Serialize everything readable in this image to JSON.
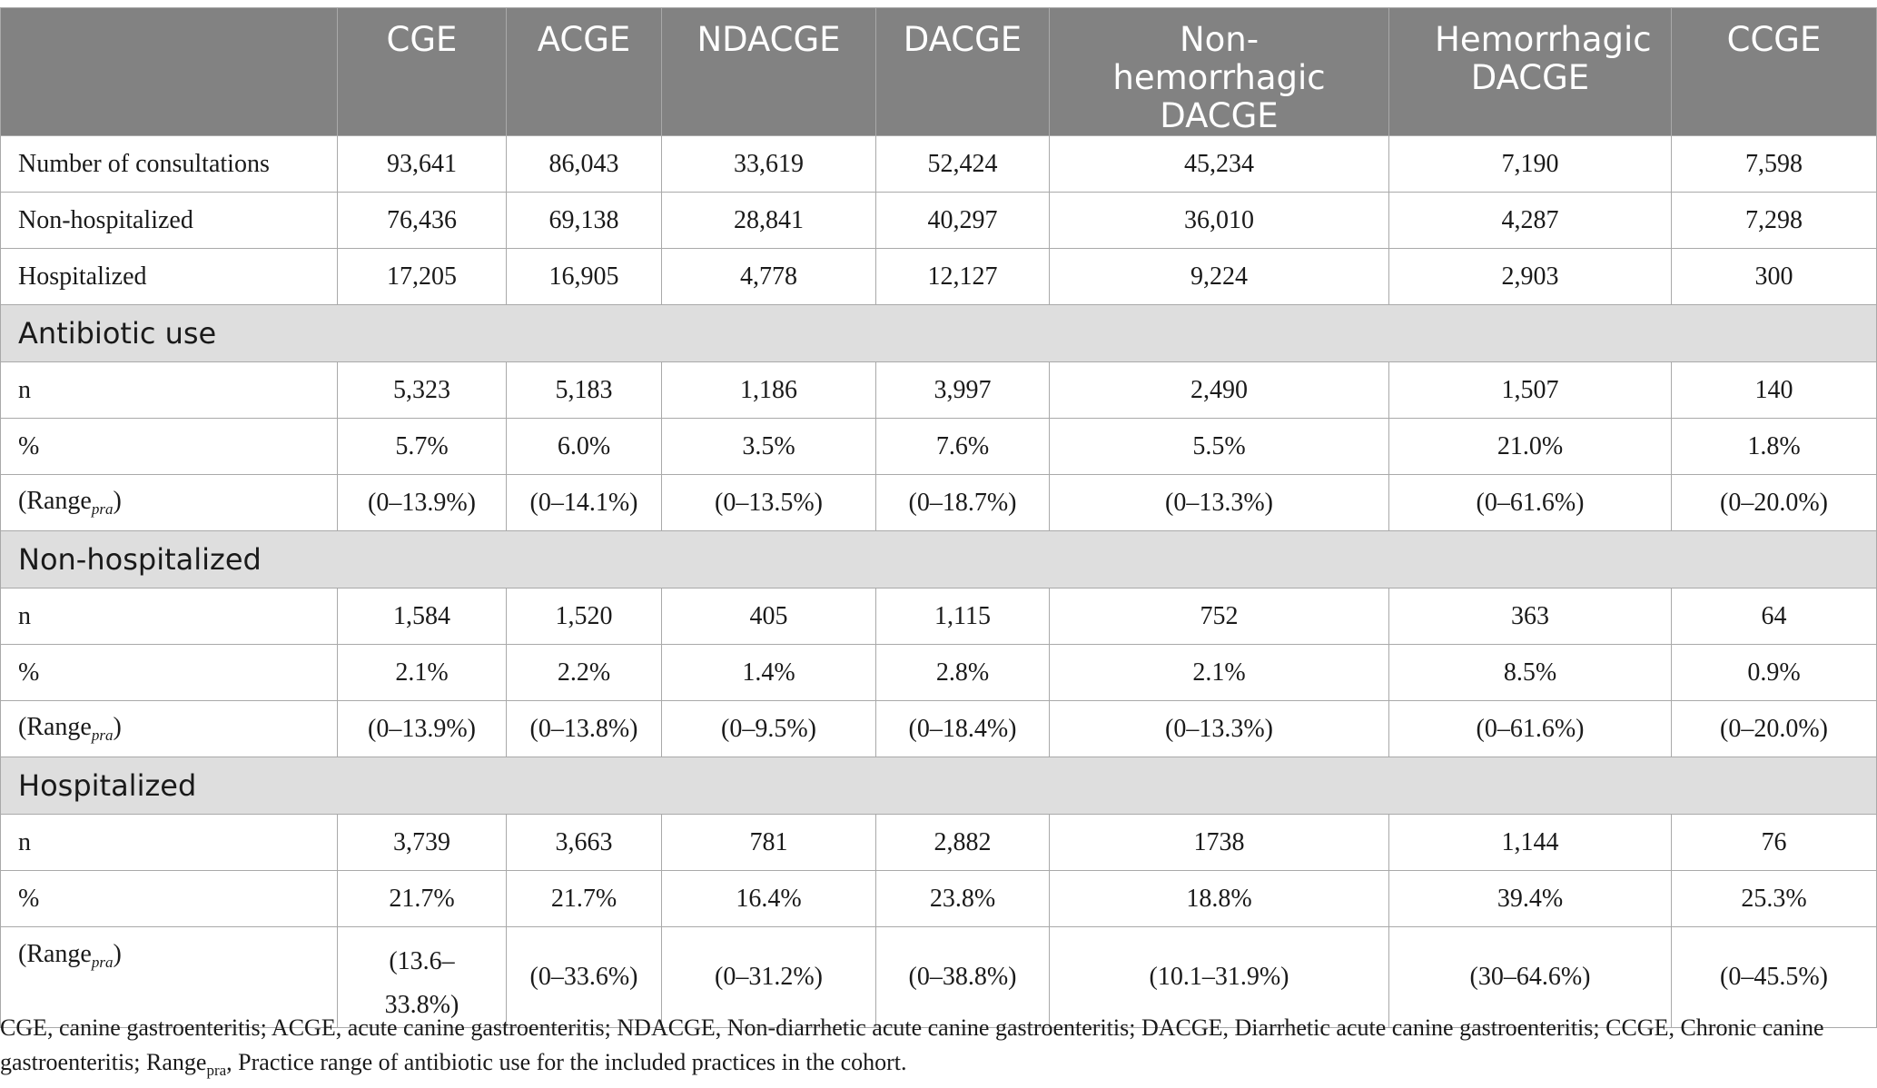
{
  "table": {
    "columns": [
      "CGE",
      "ACGE",
      "NDACGE",
      "DACGE",
      "Non-hemorrhagic DACGE",
      "Hemorrhagic DACGE",
      "CCGE"
    ],
    "top_rows": [
      {
        "label": "Number of consultations",
        "values": [
          "93,641",
          "86,043",
          "33,619",
          "52,424",
          "45,234",
          "7,190",
          "7,598"
        ]
      },
      {
        "label": "Non-hospitalized",
        "values": [
          "76,436",
          "69,138",
          "28,841",
          "40,297",
          "36,010",
          "4,287",
          "7,298"
        ]
      },
      {
        "label": "Hospitalized",
        "values": [
          "17,205",
          "16,905",
          "4,778",
          "12,127",
          "9,224",
          "2,903",
          "300"
        ]
      }
    ],
    "sections": [
      {
        "title": "Antibiotic use",
        "n": {
          "label": "n",
          "values": [
            "5,323",
            "5,183",
            "1,186",
            "3,997",
            "2,490",
            "1,507",
            "140"
          ]
        },
        "pct": {
          "label": "%",
          "values": [
            "5.7%",
            "6.0%",
            "3.5%",
            "7.6%",
            "5.5%",
            "21.0%",
            "1.8%"
          ]
        },
        "range": {
          "label_main": "(Range",
          "label_sub": "pra",
          "label_end": ")",
          "values": [
            "(0–13.9%)",
            "(0–14.1%)",
            "(0–13.5%)",
            "(0–18.7%)",
            "(0–13.3%)",
            "(0–61.6%)",
            "(0–20.0%)"
          ]
        }
      },
      {
        "title": "Non-hospitalized",
        "n": {
          "label": "n",
          "values": [
            "1,584",
            "1,520",
            "405",
            "1,115",
            "752",
            "363",
            "64"
          ]
        },
        "pct": {
          "label": "%",
          "values": [
            "2.1%",
            "2.2%",
            "1.4%",
            "2.8%",
            "2.1%",
            "8.5%",
            "0.9%"
          ]
        },
        "range": {
          "label_main": "(Range",
          "label_sub": "pra",
          "label_end": ")",
          "values": [
            "(0–13.9%)",
            "(0–13.8%)",
            "(0–9.5%)",
            "(0–18.4%)",
            "(0–13.3%)",
            "(0–61.6%)",
            "(0–20.0%)"
          ]
        }
      },
      {
        "title": "Hospitalized",
        "n": {
          "label": "n",
          "values": [
            "3,739",
            "3,663",
            "781",
            "2,882",
            "1738",
            "1,144",
            "76"
          ]
        },
        "pct": {
          "label": "%",
          "values": [
            "21.7%",
            "21.7%",
            "16.4%",
            "23.8%",
            "18.8%",
            "39.4%",
            "25.3%"
          ]
        },
        "range": {
          "label_main": "(Range",
          "label_sub": "pra",
          "label_end": ")",
          "values": [
            "(13.6–33.8%)",
            "(0–33.6%)",
            "(0–31.2%)",
            "(0–38.8%)",
            "(10.1–31.9%)",
            "(30–64.6%)",
            "(0–45.5%)"
          ]
        }
      }
    ]
  },
  "footnote": {
    "part1": "CGE, canine gastroenteritis; ACGE, acute canine gastroenteritis; NDACGE, Non-diarrhetic acute canine gastroenteritis; DACGE, Diarrhetic acute canine gastroenteritis; CCGE, Chronic canine gastroenteritis; Range",
    "sub": "pra",
    "part2": ", Practice range of antibiotic use for the included practices in the cohort."
  }
}
